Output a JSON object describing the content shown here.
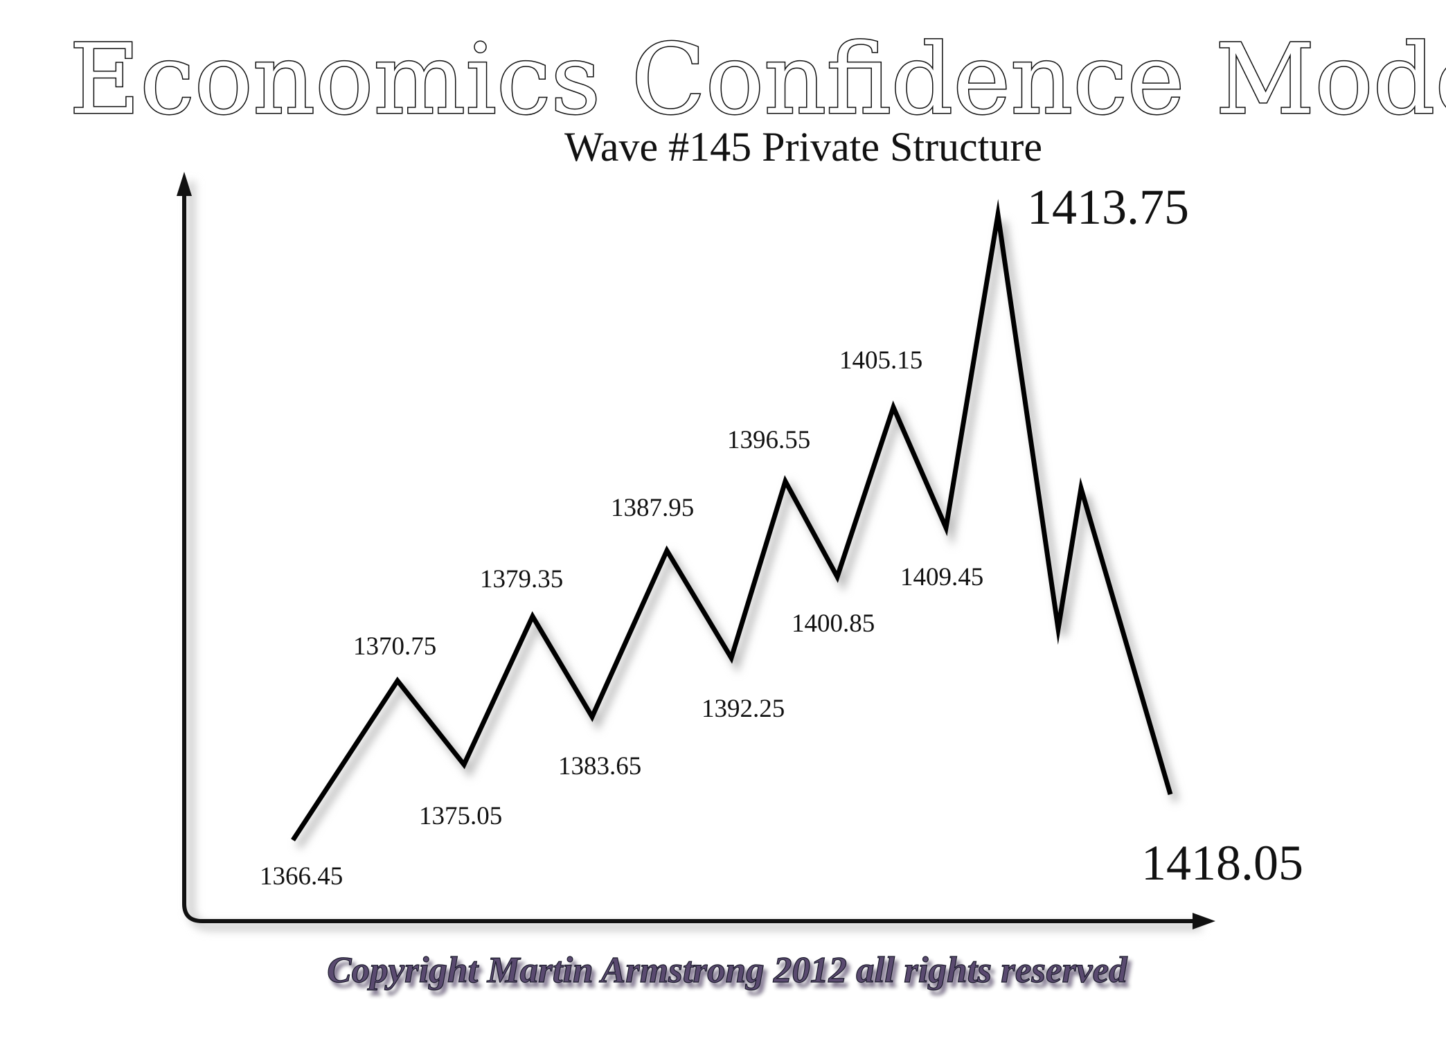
{
  "title": "Economics Confidence Model",
  "subtitle": "Wave #145 Private Structure",
  "copyright": "Copyright Martin Armstrong 2012 all rights reserved",
  "wave_points": [
    {
      "label": "1366.45",
      "kind": "start"
    },
    {
      "label": "1370.75",
      "kind": "peak"
    },
    {
      "label": "1375.05",
      "kind": "trough"
    },
    {
      "label": "1379.35",
      "kind": "peak"
    },
    {
      "label": "1383.65",
      "kind": "trough"
    },
    {
      "label": "1387.95",
      "kind": "peak"
    },
    {
      "label": "1392.25",
      "kind": "trough"
    },
    {
      "label": "1396.55",
      "kind": "peak"
    },
    {
      "label": "1400.85",
      "kind": "trough"
    },
    {
      "label": "1405.15",
      "kind": "peak"
    },
    {
      "label": "1409.45",
      "kind": "trough"
    },
    {
      "label": "1413.75",
      "kind": "major-peak"
    },
    {
      "label": "",
      "kind": "trough"
    },
    {
      "label": "",
      "kind": "peak"
    },
    {
      "label": "1418.05",
      "kind": "end"
    }
  ],
  "colors": {
    "line": "#000000",
    "axis": "#111111",
    "shadow": "#cfcfcf",
    "copyright_fill": "#5a4a70"
  }
}
